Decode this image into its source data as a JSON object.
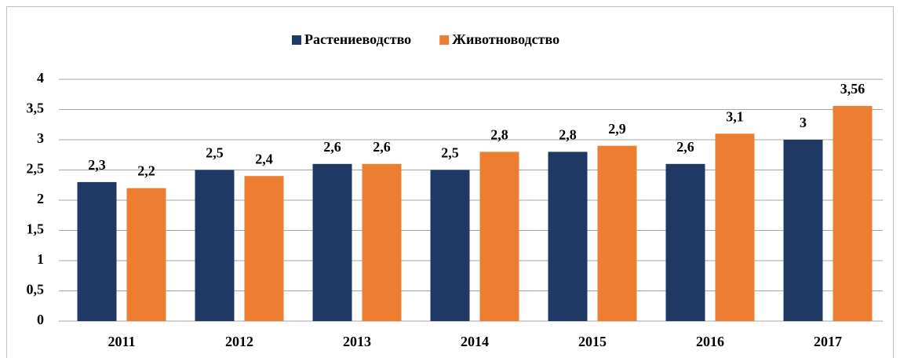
{
  "chart_data": {
    "type": "bar",
    "categories": [
      "2011",
      "2012",
      "2013",
      "2014",
      "2015",
      "2016",
      "2017"
    ],
    "series": [
      {
        "name": "Растениеводство",
        "color": "#203864",
        "values": [
          2.3,
          2.5,
          2.6,
          2.5,
          2.8,
          2.6,
          3
        ],
        "value_labels": [
          "2,3",
          "2,5",
          "2,6",
          "2,5",
          "2,8",
          "2,6",
          "3"
        ]
      },
      {
        "name": "Животноводство",
        "color": "#ed7d31",
        "values": [
          2.2,
          2.4,
          2.6,
          2.8,
          2.9,
          3.1,
          3.56
        ],
        "value_labels": [
          "2,2",
          "2,4",
          "2,6",
          "2,8",
          "2,9",
          "3,1",
          "3,56"
        ]
      }
    ],
    "ylim": [
      0,
      4
    ],
    "yticks": [
      0,
      {
        "value": 0.5,
        "label": "0,5"
      },
      1,
      {
        "value": 1.5,
        "label": "1,5"
      },
      2,
      {
        "value": 2.5,
        "label": "2,5"
      },
      3,
      {
        "value": 3.5,
        "label": "3,5"
      },
      4
    ],
    "grid": true,
    "legend": "top"
  }
}
